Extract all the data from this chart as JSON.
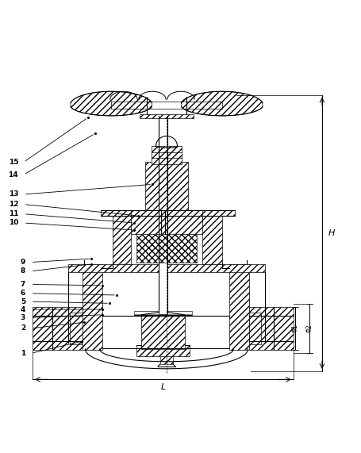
{
  "background_color": "#ffffff",
  "line_color": "#000000",
  "fig_width": 4.56,
  "fig_height": 5.71,
  "labels_info": {
    "1": [
      0.075,
      0.145,
      0.22,
      0.178
    ],
    "2": [
      0.075,
      0.215,
      0.23,
      0.232
    ],
    "3": [
      0.075,
      0.245,
      0.28,
      0.253
    ],
    "4": [
      0.075,
      0.268,
      0.28,
      0.268
    ],
    "5": [
      0.075,
      0.29,
      0.3,
      0.285
    ],
    "6": [
      0.075,
      0.313,
      0.32,
      0.308
    ],
    "7": [
      0.075,
      0.338,
      0.28,
      0.335
    ],
    "8": [
      0.075,
      0.375,
      0.25,
      0.395
    ],
    "9": [
      0.075,
      0.4,
      0.25,
      0.41
    ],
    "10": [
      0.055,
      0.51,
      0.37,
      0.49
    ],
    "11": [
      0.055,
      0.535,
      0.37,
      0.51
    ],
    "12": [
      0.055,
      0.562,
      0.38,
      0.53
    ],
    "13": [
      0.055,
      0.59,
      0.42,
      0.618
    ],
    "14": [
      0.055,
      0.645,
      0.26,
      0.76
    ],
    "15": [
      0.055,
      0.68,
      0.24,
      0.805
    ]
  }
}
